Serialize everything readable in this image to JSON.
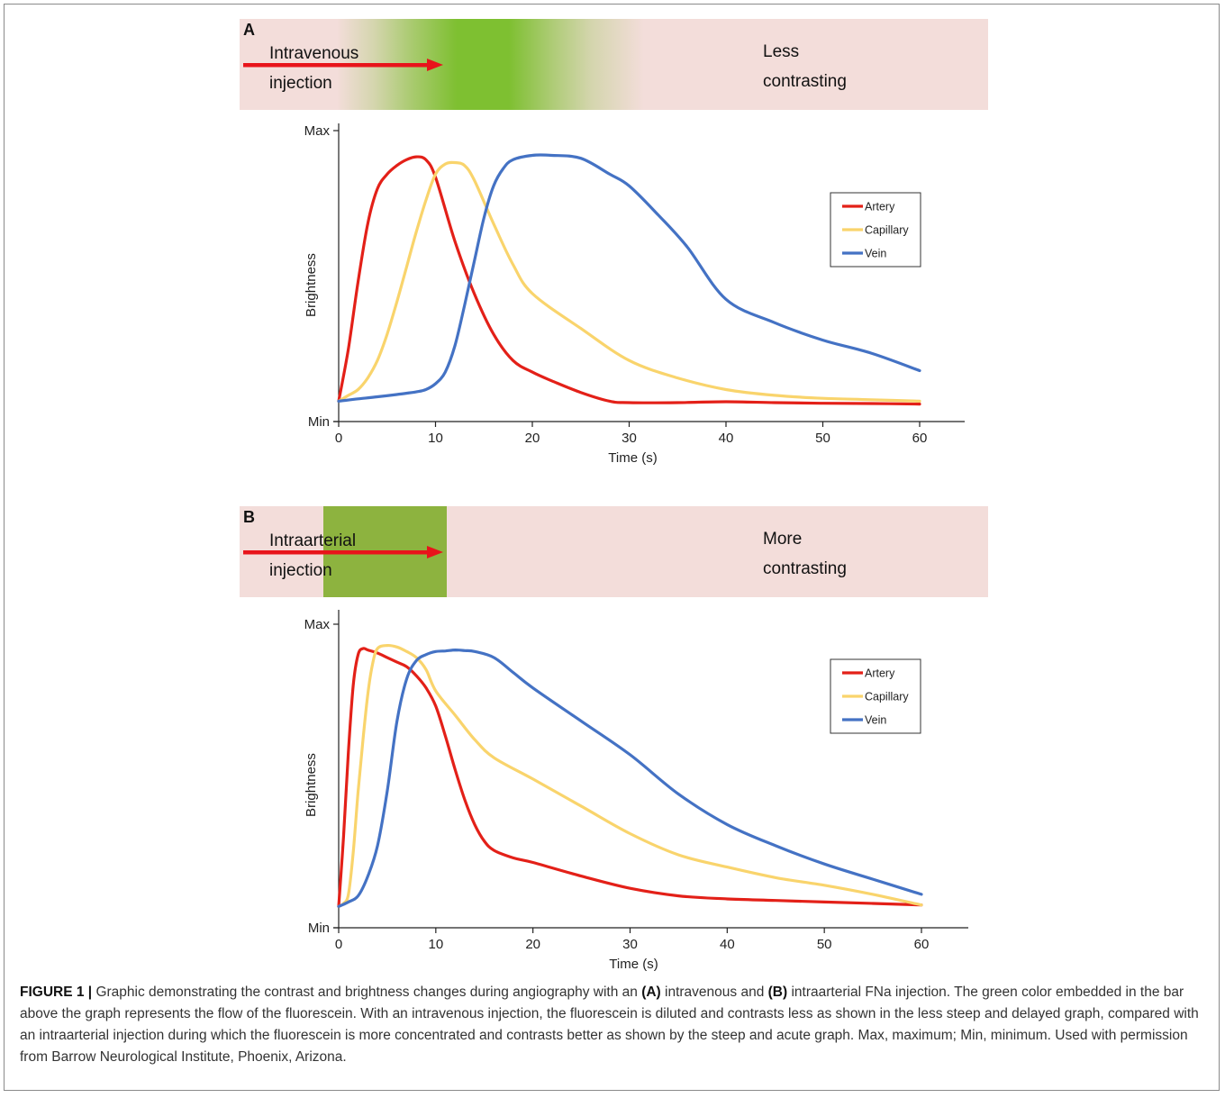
{
  "panels": [
    {
      "letter": "A",
      "injection_label": "Intravenous\ninjection",
      "result_label": "Less\ncontrasting",
      "chart_data": {
        "type": "line",
        "xlabel": "Time (s)",
        "ylabel": "Brightness",
        "xlim": [
          0,
          60
        ],
        "ylim": [
          0,
          100
        ],
        "xticks": [
          0,
          10,
          20,
          30,
          40,
          50,
          60
        ],
        "yticks": [
          {
            "value": 100,
            "label": "Max"
          },
          {
            "value": 0,
            "label": "Min"
          }
        ],
        "grid": false,
        "legend_position": "top-right",
        "series": [
          {
            "name": "Artery",
            "color": "#e32018",
            "x": [
              0,
              1,
              2,
              3,
              4,
              5,
              6,
              7,
              8,
              9,
              10,
              12,
              14,
              16,
              18,
              20,
              22,
              25,
              28,
              30,
              35,
              40,
              45,
              50,
              55,
              60
            ],
            "y": [
              7,
              25,
              48,
              68,
              80,
              85,
              88,
              90,
              91,
              90,
              84,
              62,
              44,
              30,
              21,
              17,
              14,
              10,
              7,
              6.5,
              6.5,
              6.8,
              6.5,
              6.3,
              6.2,
              6
            ]
          },
          {
            "name": "Capillary",
            "color": "#f9d46c",
            "x": [
              0,
              1,
              2,
              3,
              4,
              5,
              6,
              7,
              8,
              9,
              10,
              11,
              12,
              13,
              14,
              16,
              18,
              20,
              25,
              30,
              35,
              40,
              45,
              50,
              55,
              60
            ],
            "y": [
              7,
              9,
              11,
              15,
              21,
              30,
              41,
              53,
              65,
              76,
              85,
              88.5,
              89,
              88,
              83,
              68,
              54,
              44,
              32,
              21,
              15,
              11,
              9,
              8,
              7.5,
              7
            ]
          },
          {
            "name": "Vein",
            "color": "#4472c4",
            "x": [
              0,
              2,
              4,
              6,
              8,
              9,
              10,
              11,
              12,
              13,
              14,
              15,
              16,
              17,
              18,
              20,
              22,
              25,
              28,
              30,
              33,
              36,
              40,
              45,
              50,
              55,
              60
            ],
            "y": [
              7,
              7.8,
              8.5,
              9.3,
              10.2,
              11,
              13,
              17,
              26,
              40,
              55,
              70,
              81,
              87,
              90,
              91.5,
              91.5,
              90.5,
              85,
              81,
              71,
              60,
              42,
              34,
              28,
              23.5,
              17.5
            ]
          }
        ]
      }
    },
    {
      "letter": "B",
      "injection_label": "Intraarterial\ninjection",
      "result_label": "More\ncontrasting",
      "chart_data": {
        "type": "line",
        "xlabel": "Time (s)",
        "ylabel": "Brightness",
        "xlim": [
          0,
          60
        ],
        "ylim": [
          0,
          100
        ],
        "xticks": [
          0,
          10,
          20,
          30,
          40,
          50,
          60
        ],
        "yticks": [
          {
            "value": 100,
            "label": "Max"
          },
          {
            "value": 0,
            "label": "Min"
          }
        ],
        "grid": false,
        "legend_position": "top-right",
        "series": [
          {
            "name": "Artery",
            "color": "#e32018",
            "x": [
              0,
              0.5,
              1,
              1.5,
              2,
              2.5,
              3,
              4,
              5,
              6,
              7,
              8,
              9,
              10,
              11,
              12,
              13,
              14,
              15,
              16,
              18,
              20,
              25,
              30,
              35,
              40,
              45,
              50,
              55,
              60
            ],
            "y": [
              7,
              30,
              58,
              80,
              90,
              92,
              91.5,
              90.5,
              89,
              87.5,
              86,
              83,
              79,
              73,
              63,
              52,
              42,
              34,
              28.5,
              25.5,
              23,
              21.5,
              17,
              13,
              10.5,
              9.5,
              9,
              8.5,
              8,
              7.5
            ]
          },
          {
            "name": "Capillary",
            "color": "#f9d46c",
            "x": [
              0,
              0.5,
              1,
              1.5,
              2,
              2.5,
              3,
              3.5,
              4,
              5,
              6,
              7,
              8,
              9,
              10,
              12,
              14,
              16,
              20,
              25,
              30,
              35,
              40,
              45,
              50,
              55,
              60
            ],
            "y": [
              7,
              8,
              11,
              25,
              45,
              62,
              77,
              87,
              92,
              93,
              92.5,
              91,
              89,
              85,
              78,
              70,
              62,
              56,
              49,
              40,
              31,
              24,
              20,
              16.5,
              14,
              11,
              7.5
            ]
          },
          {
            "name": "Vein",
            "color": "#4472c4",
            "x": [
              0,
              1,
              2,
              3,
              4,
              5,
              6,
              7,
              8,
              9,
              10,
              11,
              12,
              13,
              14,
              16,
              18,
              20,
              25,
              30,
              35,
              40,
              45,
              50,
              55,
              60
            ],
            "y": [
              7,
              8.5,
              10.5,
              17,
              27,
              45,
              68,
              82,
              88,
              90,
              91,
              91.2,
              91.5,
              91.3,
              91,
              89,
              84,
              79,
              68,
              57,
              44,
              34,
              27,
              21,
              16,
              11
            ]
          }
        ]
      }
    }
  ],
  "caption": {
    "figure_label": "FIGURE 1 |",
    "part1": " Graphic demonstrating the contrast and brightness changes during angiography with an ",
    "ref_a": "(A)",
    "part2": " intravenous and ",
    "ref_b": "(B)",
    "part3": " intraarterial FNa injection. The green color embedded in the bar above the graph represents the flow of the fluorescein. With an intravenous injection, the fluorescein is diluted and contrasts less as shown in the less steep and delayed graph, compared with an intraarterial injection during which the fluorescein is more concentrated and contrasts better as shown by the steep and acute graph. Max, maximum; Min, minimum. Used with permission from Barrow Neurological Institute, Phoenix, Arizona."
  }
}
